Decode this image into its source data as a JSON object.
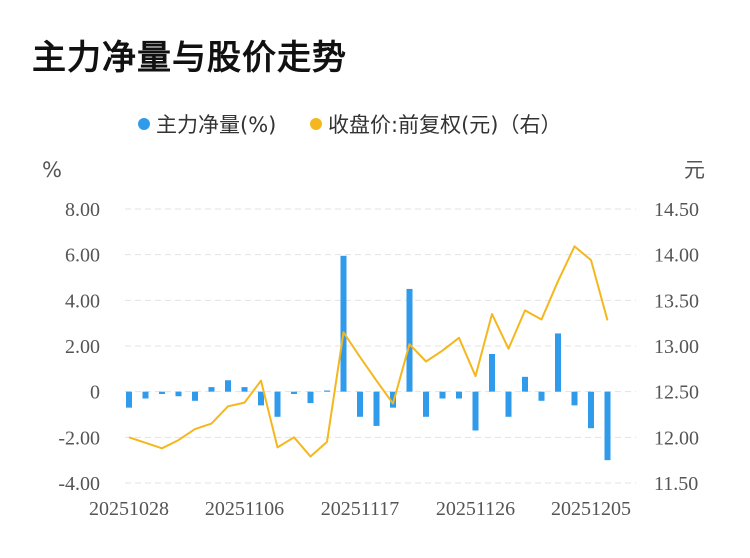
{
  "title": "主力净量与股价走势",
  "chart_data": {
    "type": "bar+line",
    "legend": [
      {
        "label": "主力净量(%)",
        "color": "#2f9bea",
        "marker": "circle"
      },
      {
        "label": "收盘价:前复权(元)（右）",
        "color": "#f4b71d",
        "marker": "circle"
      }
    ],
    "left_axis": {
      "unit": "%",
      "min": -4,
      "max": 8,
      "ticks": [
        "8.00",
        "6.00",
        "4.00",
        "2.00",
        "0",
        "-2.00",
        "-4.00"
      ]
    },
    "right_axis": {
      "unit": "元",
      "min": 11.5,
      "max": 14.5,
      "ticks": [
        "14.50",
        "14.00",
        "13.50",
        "13.00",
        "12.50",
        "12.00",
        "11.50"
      ]
    },
    "x_tick_labels": [
      "20251028",
      "20251106",
      "20251117",
      "20251126",
      "20251205"
    ],
    "x_tick_index": [
      0,
      7,
      14,
      21,
      28
    ],
    "series": [
      {
        "name": "主力净量(%)",
        "type": "bar",
        "color": "#2f9bea",
        "values": [
          -0.7,
          -0.3,
          -0.1,
          -0.2,
          -0.4,
          0.2,
          0.5,
          0.2,
          -0.6,
          -1.1,
          -0.1,
          -0.5,
          0.05,
          5.95,
          -1.1,
          -1.5,
          -0.7,
          4.5,
          -1.1,
          -0.3,
          -0.3,
          -1.7,
          1.65,
          -1.1,
          0.65,
          -0.4,
          2.55,
          -0.6,
          -1.6,
          -3.0
        ]
      },
      {
        "name": "收盘价:前复权(元)（右）",
        "type": "line",
        "color": "#f4b71d",
        "values": [
          12.0,
          11.94,
          11.88,
          11.97,
          12.09,
          12.15,
          12.34,
          12.38,
          12.62,
          11.89,
          12.0,
          11.79,
          11.95,
          13.15,
          12.88,
          12.62,
          12.37,
          13.02,
          12.83,
          12.95,
          13.09,
          12.67,
          13.35,
          12.97,
          13.39,
          13.29,
          13.71,
          14.09,
          13.94,
          13.28
        ]
      }
    ],
    "grid": true
  }
}
